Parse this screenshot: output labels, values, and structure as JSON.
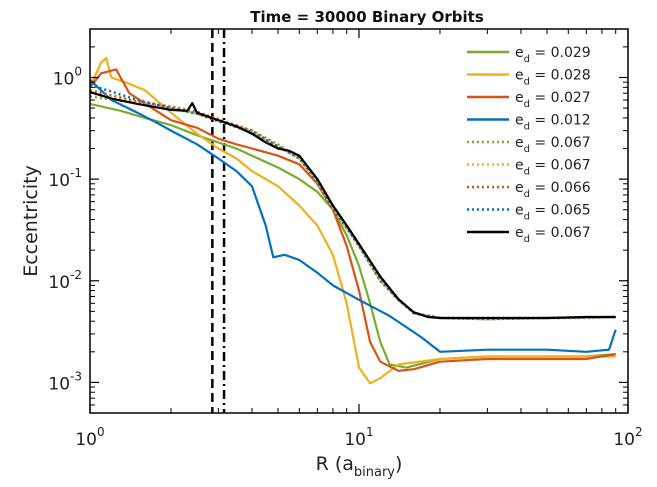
{
  "chart_data": {
    "type": "line",
    "title": "Time = 30000 Binary Orbits",
    "xlabel": {
      "main": "R (a",
      "sub": "binary",
      "close": ")"
    },
    "ylabel": "Eccentricity",
    "x_scale": "log",
    "y_scale": "log",
    "xlim": [
      1,
      100
    ],
    "ylim": [
      0.0005,
      3
    ],
    "grid": false,
    "legend_position": "top-right",
    "x_ticks": [
      {
        "value": 1,
        "base": "10",
        "exp": "0"
      },
      {
        "value": 10,
        "base": "10",
        "exp": "1"
      },
      {
        "value": 100,
        "base": "10",
        "exp": "2"
      }
    ],
    "y_ticks": [
      {
        "value": 0.001,
        "base": "10",
        "exp": "-3"
      },
      {
        "value": 0.01,
        "base": "10",
        "exp": "-2"
      },
      {
        "value": 0.1,
        "base": "10",
        "exp": "-1"
      },
      {
        "value": 1,
        "base": "10",
        "exp": "0"
      }
    ],
    "vertical_lines": [
      {
        "x": 2.85,
        "style": "dashed",
        "color": "#000000"
      },
      {
        "x": 3.15,
        "style": "dashdot",
        "color": "#000000"
      }
    ],
    "series": [
      {
        "label_main": "e",
        "label_sub": "d",
        "label_value": " = 0.029",
        "color": "#77ac30",
        "style": "solid",
        "points": [
          [
            1,
            0.55
          ],
          [
            1.3,
            0.47
          ],
          [
            1.6,
            0.4
          ],
          [
            2,
            0.34
          ],
          [
            2.5,
            0.27
          ],
          [
            3,
            0.23
          ],
          [
            3.5,
            0.2
          ],
          [
            4,
            0.17
          ],
          [
            5,
            0.13
          ],
          [
            6,
            0.1
          ],
          [
            7,
            0.075
          ],
          [
            8,
            0.05
          ],
          [
            9,
            0.028
          ],
          [
            10,
            0.014
          ],
          [
            11,
            0.006
          ],
          [
            12,
            0.0025
          ],
          [
            13,
            0.0015
          ],
          [
            15,
            0.0014
          ],
          [
            20,
            0.0017
          ],
          [
            30,
            0.0018
          ],
          [
            50,
            0.0018
          ],
          [
            70,
            0.0018
          ],
          [
            90,
            0.0019
          ]
        ]
      },
      {
        "label_main": "e",
        "label_sub": "d",
        "label_value": " = 0.028",
        "color": "#edb120",
        "style": "solid",
        "points": [
          [
            1,
            0.8
          ],
          [
            1.1,
            1.4
          ],
          [
            1.15,
            1.55
          ],
          [
            1.2,
            1.0
          ],
          [
            1.35,
            0.9
          ],
          [
            1.6,
            0.75
          ],
          [
            2,
            0.45
          ],
          [
            2.5,
            0.28
          ],
          [
            3,
            0.2
          ],
          [
            3.5,
            0.16
          ],
          [
            4,
            0.12
          ],
          [
            5,
            0.085
          ],
          [
            6,
            0.055
          ],
          [
            7,
            0.035
          ],
          [
            8,
            0.018
          ],
          [
            9,
            0.006
          ],
          [
            10,
            0.0014
          ],
          [
            11,
            0.00098
          ],
          [
            12,
            0.0011
          ],
          [
            14,
            0.0015
          ],
          [
            20,
            0.0017
          ],
          [
            30,
            0.0018
          ],
          [
            50,
            0.0018
          ],
          [
            90,
            0.0018
          ]
        ]
      },
      {
        "label_main": "e",
        "label_sub": "d",
        "label_value": " = 0.027",
        "color": "#d95319",
        "style": "solid",
        "points": [
          [
            1,
            0.8
          ],
          [
            1.1,
            1.1
          ],
          [
            1.25,
            1.2
          ],
          [
            1.4,
            0.7
          ],
          [
            1.7,
            0.5
          ],
          [
            2,
            0.38
          ],
          [
            2.5,
            0.32
          ],
          [
            3,
            0.25
          ],
          [
            3.5,
            0.22
          ],
          [
            4,
            0.2
          ],
          [
            5,
            0.17
          ],
          [
            6,
            0.14
          ],
          [
            7,
            0.09
          ],
          [
            8,
            0.05
          ],
          [
            9,
            0.022
          ],
          [
            10,
            0.008
          ],
          [
            11,
            0.0025
          ],
          [
            12,
            0.0016
          ],
          [
            14,
            0.0013
          ],
          [
            16,
            0.00135
          ],
          [
            20,
            0.0016
          ],
          [
            30,
            0.0017
          ],
          [
            50,
            0.0017
          ],
          [
            70,
            0.0017
          ],
          [
            90,
            0.0019
          ]
        ]
      },
      {
        "label_main": "e",
        "label_sub": "d",
        "label_value": " = 0.012",
        "color": "#0072bd",
        "style": "solid",
        "points": [
          [
            1,
            0.95
          ],
          [
            1.2,
            0.6
          ],
          [
            1.5,
            0.45
          ],
          [
            1.8,
            0.35
          ],
          [
            2,
            0.3
          ],
          [
            2.5,
            0.22
          ],
          [
            3,
            0.16
          ],
          [
            3.5,
            0.12
          ],
          [
            4,
            0.085
          ],
          [
            4.5,
            0.035
          ],
          [
            4.8,
            0.017
          ],
          [
            5.3,
            0.018
          ],
          [
            6,
            0.016
          ],
          [
            7,
            0.012
          ],
          [
            8,
            0.009
          ],
          [
            10,
            0.0065
          ],
          [
            13,
            0.0045
          ],
          [
            17,
            0.0028
          ],
          [
            20,
            0.002
          ],
          [
            30,
            0.0021
          ],
          [
            50,
            0.0021
          ],
          [
            70,
            0.002
          ],
          [
            85,
            0.0021
          ],
          [
            90,
            0.0033
          ]
        ]
      },
      {
        "label_main": "e",
        "label_sub": "d",
        "label_value": " = 0.067",
        "color": "#77ac30",
        "style": "dotted",
        "points": [
          [
            1,
            0.65
          ],
          [
            1.5,
            0.56
          ],
          [
            2,
            0.5
          ],
          [
            2.5,
            0.44
          ],
          [
            3,
            0.38
          ],
          [
            4,
            0.3
          ],
          [
            5,
            0.22
          ],
          [
            6,
            0.16
          ],
          [
            7,
            0.095
          ],
          [
            8,
            0.052
          ],
          [
            10,
            0.022
          ],
          [
            12,
            0.01
          ],
          [
            14,
            0.0065
          ],
          [
            16,
            0.0048
          ],
          [
            20,
            0.0043
          ],
          [
            30,
            0.0042
          ],
          [
            50,
            0.0043
          ],
          [
            70,
            0.0043
          ],
          [
            90,
            0.0044
          ]
        ]
      },
      {
        "label_main": "e",
        "label_sub": "d",
        "label_value": " = 0.067",
        "color": "#edb120",
        "style": "dotted",
        "points": [
          [
            1,
            0.7
          ],
          [
            1.5,
            0.57
          ],
          [
            2,
            0.5
          ],
          [
            2.5,
            0.44
          ],
          [
            3,
            0.38
          ],
          [
            4,
            0.29
          ],
          [
            5,
            0.21
          ],
          [
            6,
            0.16
          ],
          [
            7,
            0.095
          ],
          [
            8,
            0.051
          ],
          [
            10,
            0.022
          ],
          [
            12,
            0.01
          ],
          [
            14,
            0.0065
          ],
          [
            16,
            0.0048
          ],
          [
            20,
            0.0043
          ],
          [
            30,
            0.0042
          ],
          [
            50,
            0.0043
          ],
          [
            90,
            0.0044
          ]
        ]
      },
      {
        "label_main": "e",
        "label_sub": "d",
        "label_value": " = 0.066",
        "color": "#d95319",
        "style": "dotted",
        "points": [
          [
            1,
            0.75
          ],
          [
            1.5,
            0.58
          ],
          [
            2,
            0.52
          ],
          [
            2.5,
            0.46
          ],
          [
            3,
            0.39
          ],
          [
            4,
            0.3
          ],
          [
            5,
            0.21
          ],
          [
            6,
            0.165
          ],
          [
            7,
            0.1
          ],
          [
            8,
            0.055
          ],
          [
            10,
            0.023
          ],
          [
            12,
            0.011
          ],
          [
            14,
            0.0066
          ],
          [
            16,
            0.0048
          ],
          [
            20,
            0.0043
          ],
          [
            30,
            0.0043
          ],
          [
            50,
            0.0043
          ],
          [
            90,
            0.0044
          ]
        ]
      },
      {
        "label_main": "e",
        "label_sub": "d",
        "label_value": " = 0.065",
        "color": "#0072bd",
        "style": "dotted",
        "points": [
          [
            1,
            0.85
          ],
          [
            1.5,
            0.6
          ],
          [
            2,
            0.5
          ],
          [
            2.5,
            0.44
          ],
          [
            3,
            0.37
          ],
          [
            4,
            0.29
          ],
          [
            5,
            0.21
          ],
          [
            6,
            0.16
          ],
          [
            7,
            0.095
          ],
          [
            8,
            0.052
          ],
          [
            10,
            0.022
          ],
          [
            12,
            0.01
          ],
          [
            14,
            0.0065
          ],
          [
            16,
            0.0048
          ],
          [
            20,
            0.0043
          ],
          [
            30,
            0.0042
          ],
          [
            50,
            0.0043
          ],
          [
            90,
            0.0044
          ]
        ]
      },
      {
        "label_main": "e",
        "label_sub": "d",
        "label_value": " = 0.067",
        "color": "#000000",
        "style": "solid",
        "points": [
          [
            1,
            0.72
          ],
          [
            1.2,
            0.62
          ],
          [
            1.5,
            0.55
          ],
          [
            2,
            0.48
          ],
          [
            2.3,
            0.47
          ],
          [
            2.4,
            0.56
          ],
          [
            2.5,
            0.45
          ],
          [
            3,
            0.38
          ],
          [
            3.5,
            0.33
          ],
          [
            4,
            0.28
          ],
          [
            4.5,
            0.23
          ],
          [
            5,
            0.2
          ],
          [
            5.5,
            0.19
          ],
          [
            6,
            0.17
          ],
          [
            7,
            0.1
          ],
          [
            8,
            0.055
          ],
          [
            9,
            0.035
          ],
          [
            10,
            0.023
          ],
          [
            12,
            0.011
          ],
          [
            14,
            0.0066
          ],
          [
            16,
            0.0049
          ],
          [
            18,
            0.0044
          ],
          [
            20,
            0.0043
          ],
          [
            30,
            0.0043
          ],
          [
            50,
            0.0043
          ],
          [
            70,
            0.0044
          ],
          [
            90,
            0.0044
          ]
        ]
      }
    ]
  }
}
